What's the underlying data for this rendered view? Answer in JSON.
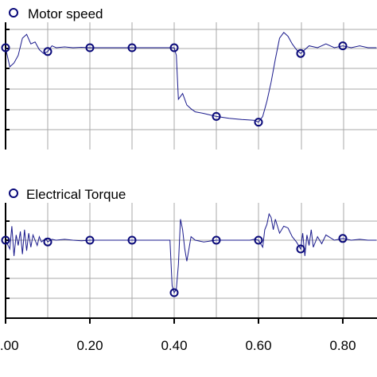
{
  "chart_data": [
    {
      "type": "line",
      "title": "Motor speed",
      "legend": "top-left",
      "grid": true,
      "marker": "circle",
      "xlim": [
        0.0,
        0.88
      ],
      "series": [
        {
          "name": "Motor speed",
          "x": [
            0.0,
            0.01,
            0.02,
            0.03,
            0.04,
            0.05,
            0.06,
            0.07,
            0.08,
            0.09,
            0.1,
            0.11,
            0.12,
            0.14,
            0.16,
            0.18,
            0.2,
            0.25,
            0.3,
            0.35,
            0.4,
            0.405,
            0.41,
            0.42,
            0.43,
            0.44,
            0.45,
            0.47,
            0.5,
            0.53,
            0.56,
            0.59,
            0.6,
            0.61,
            0.62,
            0.63,
            0.64,
            0.65,
            0.66,
            0.67,
            0.68,
            0.69,
            0.7,
            0.71,
            0.72,
            0.74,
            0.76,
            0.78,
            0.8,
            0.82,
            0.84,
            0.86,
            0.88
          ],
          "values": [
            0.0,
            -0.5,
            -0.4,
            -0.2,
            0.25,
            0.35,
            0.1,
            0.15,
            -0.05,
            -0.15,
            -0.1,
            0.05,
            0.0,
            0.02,
            0.0,
            0.01,
            0.0,
            0.0,
            0.0,
            0.0,
            0.0,
            -0.2,
            -1.35,
            -1.2,
            -1.5,
            -1.6,
            -1.68,
            -1.72,
            -1.8,
            -1.85,
            -1.88,
            -1.9,
            -1.95,
            -1.8,
            -1.4,
            -0.9,
            -0.3,
            0.25,
            0.4,
            0.3,
            0.1,
            -0.05,
            -0.15,
            -0.05,
            0.05,
            0.0,
            0.1,
            0.0,
            0.05,
            0.0,
            0.05,
            0.0,
            0.0
          ],
          "markers_x": [
            0.0,
            0.1,
            0.2,
            0.3,
            0.4,
            0.5,
            0.6,
            0.7,
            0.8
          ]
        }
      ]
    },
    {
      "type": "line",
      "title": "Electrical Torque",
      "legend": "top-left",
      "grid": true,
      "marker": "circle",
      "xlim": [
        0.0,
        0.88
      ],
      "xticks": [
        "0.00",
        "0.20",
        "0.40",
        "0.60",
        "0.80"
      ],
      "xticks_values": [
        0.0,
        0.2,
        0.4,
        0.6,
        0.8
      ],
      "series": [
        {
          "name": "Electrical Torque",
          "x": [
            0.0,
            0.01,
            0.015,
            0.02,
            0.025,
            0.03,
            0.035,
            0.04,
            0.045,
            0.05,
            0.055,
            0.06,
            0.065,
            0.07,
            0.075,
            0.08,
            0.085,
            0.09,
            0.095,
            0.1,
            0.11,
            0.12,
            0.14,
            0.16,
            0.18,
            0.2,
            0.25,
            0.3,
            0.35,
            0.39,
            0.395,
            0.4,
            0.405,
            0.41,
            0.415,
            0.42,
            0.425,
            0.43,
            0.44,
            0.45,
            0.47,
            0.5,
            0.55,
            0.58,
            0.59,
            0.6,
            0.61,
            0.615,
            0.62,
            0.625,
            0.63,
            0.635,
            0.64,
            0.65,
            0.66,
            0.67,
            0.68,
            0.69,
            0.7,
            0.705,
            0.71,
            0.715,
            0.72,
            0.725,
            0.73,
            0.74,
            0.75,
            0.76,
            0.78,
            0.8,
            0.82,
            0.84,
            0.86,
            0.88
          ],
          "values": [
            0.0,
            -0.5,
            0.8,
            -0.9,
            0.3,
            -0.3,
            0.5,
            -0.8,
            0.6,
            -0.6,
            0.4,
            -0.4,
            0.3,
            0.0,
            -0.3,
            0.2,
            -0.1,
            0.0,
            0.1,
            -0.1,
            0.05,
            0.0,
            0.05,
            0.0,
            -0.03,
            0.0,
            0.0,
            0.0,
            0.0,
            0.0,
            -2.6,
            -3.0,
            -2.8,
            -1.4,
            1.2,
            0.6,
            -0.5,
            -1.2,
            0.2,
            0.0,
            -0.1,
            0.0,
            0.0,
            0.0,
            0.05,
            0.0,
            -0.4,
            0.6,
            0.9,
            1.5,
            1.3,
            0.6,
            1.2,
            0.4,
            0.8,
            0.7,
            0.2,
            -0.1,
            -0.5,
            0.4,
            -0.9,
            0.3,
            -0.3,
            0.6,
            -0.4,
            0.2,
            -0.2,
            0.3,
            0.0,
            0.1,
            0.0,
            0.05,
            0.0,
            0.0
          ],
          "markers_x": [
            0.0,
            0.1,
            0.2,
            0.3,
            0.4,
            0.5,
            0.6,
            0.7,
            0.8
          ]
        }
      ]
    }
  ]
}
